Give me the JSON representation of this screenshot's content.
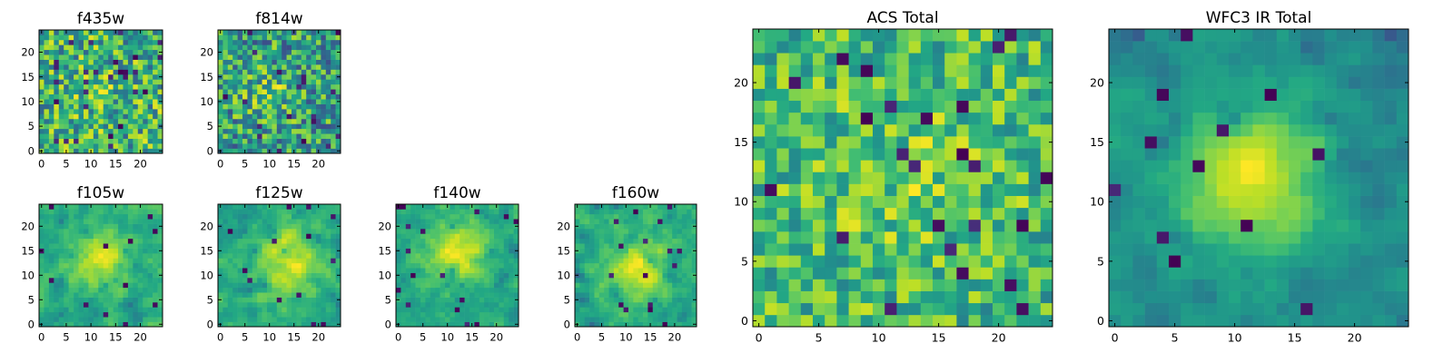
{
  "figure": {
    "colormap": "viridis",
    "colors": {
      "dark": "#440154",
      "mid": "#21918c",
      "bright": "#fde725",
      "frame": "#000000"
    }
  },
  "chart_data": [
    {
      "id": "f435w",
      "type": "heatmap",
      "title": "f435w",
      "grid": [
        25,
        25
      ],
      "xlim": [
        0,
        24
      ],
      "ylim": [
        0,
        24
      ],
      "xticks": [
        0,
        5,
        10,
        15,
        20
      ],
      "yticks": [
        0,
        5,
        10,
        15,
        20
      ],
      "xlabel": "",
      "ylabel": "",
      "values_description": "noisy pixel flux map, no clear source"
    },
    {
      "id": "f814w",
      "type": "heatmap",
      "title": "f814w",
      "grid": [
        25,
        25
      ],
      "xlim": [
        0,
        24
      ],
      "ylim": [
        0,
        24
      ],
      "xticks": [
        0,
        5,
        10,
        15,
        20
      ],
      "yticks": [
        0,
        5,
        10,
        15,
        20
      ],
      "xlabel": "",
      "ylabel": "",
      "values_description": "noisy pixel flux map, faint central source"
    },
    {
      "id": "f105w",
      "type": "heatmap",
      "title": "f105w",
      "grid": [
        25,
        25
      ],
      "xlim": [
        0,
        24
      ],
      "ylim": [
        0,
        24
      ],
      "xticks": [
        0,
        5,
        10,
        15,
        20
      ],
      "yticks": [
        0,
        5,
        10,
        15,
        20
      ],
      "xlabel": "",
      "ylabel": ""
    },
    {
      "id": "f125w",
      "type": "heatmap",
      "title": "f125w",
      "grid": [
        25,
        25
      ],
      "xlim": [
        0,
        24
      ],
      "ylim": [
        0,
        24
      ],
      "xticks": [
        0,
        5,
        10,
        15,
        20
      ],
      "yticks": [
        0,
        5,
        10,
        15,
        20
      ],
      "xlabel": "",
      "ylabel": ""
    },
    {
      "id": "f140w",
      "type": "heatmap",
      "title": "f140w",
      "grid": [
        25,
        25
      ],
      "xlim": [
        0,
        24
      ],
      "ylim": [
        0,
        24
      ],
      "xticks": [
        0,
        5,
        10,
        15,
        20
      ],
      "yticks": [
        0,
        5,
        10,
        15,
        20
      ],
      "xlabel": "",
      "ylabel": ""
    },
    {
      "id": "f160w",
      "type": "heatmap",
      "title": "f160w",
      "grid": [
        25,
        25
      ],
      "xlim": [
        0,
        24
      ],
      "ylim": [
        0,
        24
      ],
      "xticks": [
        0,
        5,
        10,
        15,
        20
      ],
      "yticks": [
        0,
        5,
        10,
        15,
        20
      ],
      "xlabel": "",
      "ylabel": ""
    },
    {
      "id": "acs-total",
      "type": "heatmap",
      "title": "ACS Total",
      "grid": [
        25,
        25
      ],
      "xlim": [
        0,
        24
      ],
      "ylim": [
        0,
        24
      ],
      "xticks": [
        0,
        5,
        10,
        15,
        20
      ],
      "yticks": [
        0,
        5,
        10,
        15,
        20
      ],
      "xlabel": "",
      "ylabel": ""
    },
    {
      "id": "wfc3-ir-total",
      "type": "heatmap",
      "title": "WFC3 IR Total",
      "grid": [
        25,
        25
      ],
      "xlim": [
        0,
        24
      ],
      "ylim": [
        0,
        24
      ],
      "xticks": [
        0,
        5,
        10,
        15,
        20
      ],
      "yticks": [
        0,
        5,
        10,
        15,
        20
      ],
      "xlabel": "",
      "ylabel": ""
    }
  ]
}
